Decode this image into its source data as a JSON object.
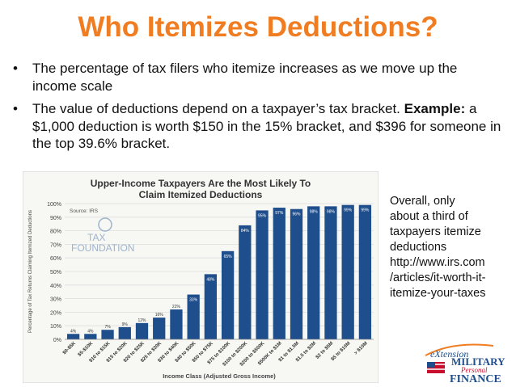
{
  "slide": {
    "title": "Who Itemizes Deductions?",
    "bullets": [
      {
        "text": "The percentage of tax filers who itemize increases as we move up the income scale"
      },
      {
        "text": "The value of deductions depend on a taxpayer’s tax bracket.",
        "example_label": "Example:",
        "example_text": "a $1,000 deduction is worth $150 in the 15% bracket, and $396 for someone in the top 39.6% bracket."
      }
    ],
    "side_note_lines": [
      "Overall, only",
      "about a third of",
      "taxpayers itemize",
      "deductions",
      "http://www.irs.com",
      "/articles/it-worth-it-",
      "itemize-your-taxes"
    ],
    "logo": {
      "line1": "eXtension",
      "line2": "MILITARY",
      "line3": "Personal",
      "line4": "FINANCE"
    }
  },
  "chart_data": {
    "type": "bar",
    "title": "Upper-Income Taxpayers Are the Most Likely To Claim Itemized Deductions",
    "source": "Source: IRS",
    "watermark": "TAX FOUNDATION",
    "xlabel": "Income Class (Adjusted Gross Income)",
    "ylabel": "Percentage of Tax Returns Claiming Itemized Deductions",
    "ylim": [
      0,
      100
    ],
    "yticks": [
      "0%",
      "10%",
      "20%",
      "30%",
      "40%",
      "50%",
      "60%",
      "70%",
      "80%",
      "90%",
      "100%"
    ],
    "categories": [
      "$0-$5K",
      "$5-$10K",
      "$10 to $15K",
      "$15 to $20K",
      "$20 to $25K",
      "$25 to $30K",
      "$30 to $40K",
      "$40 to $50K",
      "$50 to $75K",
      "$75 to $100K",
      "$100 to $200K",
      "$200 to $500K",
      "$500K to $1M",
      "$1 to $1.5M",
      "$1.5 to $2M",
      "$2 to $5M",
      "$5 to $10M",
      "> $10M"
    ],
    "values": [
      4,
      4,
      7,
      9,
      12,
      16,
      22,
      33,
      48,
      65,
      84,
      95,
      97,
      96,
      98,
      98,
      99,
      99
    ],
    "data_labels": [
      "4%",
      "4%",
      "7%",
      "9%",
      "12%",
      "16%",
      "22%",
      "33%",
      "48%",
      "65%",
      "84%",
      "95%",
      "97%",
      "96%",
      "98%",
      "98%",
      "99%",
      "99%"
    ],
    "bar_color": "#1f4e8c",
    "grid": true
  }
}
